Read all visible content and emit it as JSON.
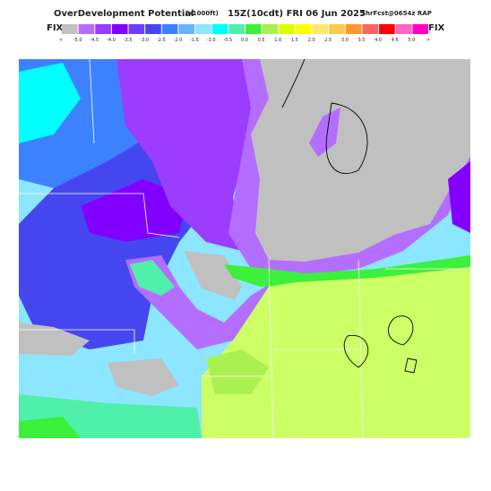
{
  "header": {
    "title": "OverDevelopment Potential",
    "units": "(x1000ft)",
    "valid": "15Z(10cdt) FRI 06 Jun 2025",
    "source": "ShrFcst@0654z RAP"
  },
  "colorbar": {
    "left_label": "FIX",
    "right_label": "FIX",
    "labels": [
      "<",
      "-5.0",
      "-4.5",
      "-4.0",
      "-3.5",
      "-3.0",
      "-2.5",
      "-2.0",
      "-1.5",
      "-1.0",
      "-0.5",
      "0.0",
      "0.5",
      "1.0",
      "1.5",
      "2.0",
      "2.5",
      "3.0",
      "3.5",
      "4.0",
      "4.5",
      "5.0",
      ">"
    ],
    "colors": [
      "#c0c0c0",
      "#b46eff",
      "#9b3cff",
      "#8200ff",
      "#6e3cff",
      "#4646f0",
      "#3c82ff",
      "#64b4ff",
      "#8ce6ff",
      "#00ffff",
      "#50f0aa",
      "#3cf03c",
      "#aaf050",
      "#dcff00",
      "#ffff00",
      "#ffe66e",
      "#ffc850",
      "#ff9632",
      "#ff6464",
      "#ff0000",
      "#ff64c8",
      "#ff00c8"
    ]
  }
}
